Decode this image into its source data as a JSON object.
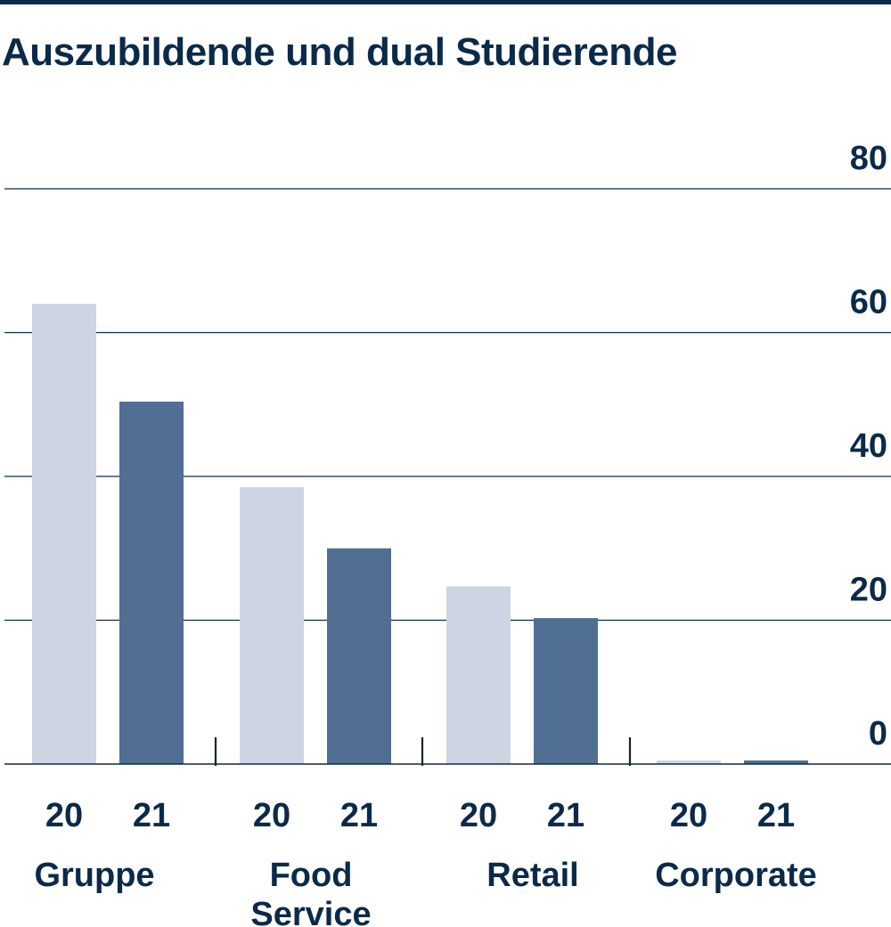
{
  "chart_data": {
    "type": "bar",
    "title": "Auszubildende und dual Studierende",
    "categories": [
      "Gruppe",
      "Food Service",
      "Retail",
      "Corporate"
    ],
    "category_lines": [
      [
        "Gruppe"
      ],
      [
        "Food",
        "Service"
      ],
      [
        "Retail"
      ],
      [
        "Corporate"
      ]
    ],
    "series": [
      {
        "name": "20",
        "color": "#cdd5e2",
        "values": [
          64,
          38.5,
          24.7,
          0.5
        ]
      },
      {
        "name": "21",
        "color": "#506f93",
        "values": [
          50.4,
          30,
          20.3,
          0.5
        ]
      }
    ],
    "ylim": [
      0,
      80
    ],
    "yticks": [
      0,
      20,
      40,
      60,
      80
    ],
    "grid": true,
    "axis_position": "right",
    "grid_color": "#0b2a4a",
    "text_color": "#0b2a4a"
  }
}
